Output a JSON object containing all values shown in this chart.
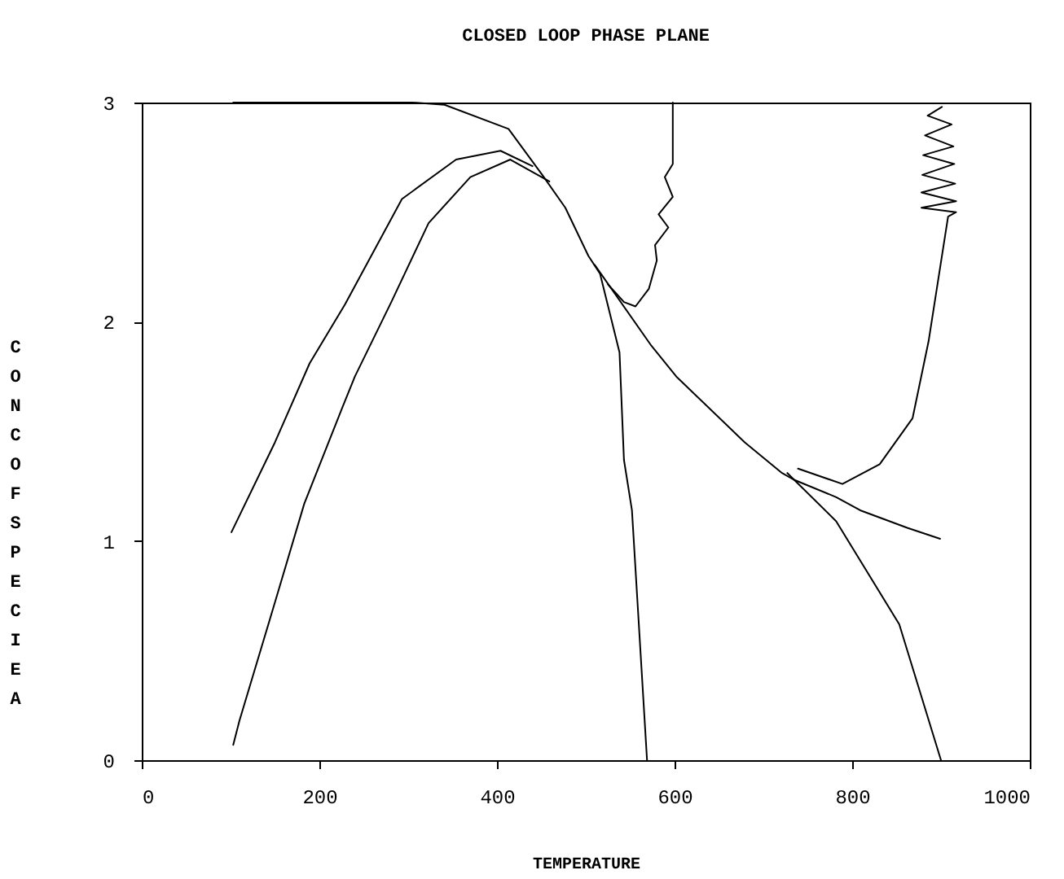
{
  "chart_data": {
    "type": "line",
    "title": "CLOSED LOOP PHASE PLANE",
    "xlabel": "TEMPERATURE",
    "ylabel": "CONC OF SPECIE A",
    "xlim": [
      0,
      1000
    ],
    "xticks": [
      0,
      200,
      400,
      600,
      800,
      1000
    ],
    "ylim": [
      0,
      3
    ],
    "yticks": [
      0,
      1,
      2,
      3
    ],
    "grid": false,
    "legend": false,
    "marker": "none",
    "line_style": "solid",
    "series": [
      {
        "color": "#000000",
        "x": [
          103,
          200,
          305,
          341,
          413,
          451,
          477,
          503,
          516,
          538,
          543,
          552,
          569
        ],
        "values": [
          3.0,
          3.0,
          3.0,
          2.99,
          2.88,
          2.67,
          2.52,
          2.3,
          2.22,
          1.86,
          1.37,
          1.14,
          0.0
        ]
      },
      {
        "color": "#000000",
        "x": [
          101,
          150,
          189,
          229,
          293,
          354,
          404,
          440
        ],
        "values": [
          1.04,
          1.45,
          1.81,
          2.08,
          2.56,
          2.74,
          2.78,
          2.71
        ]
      },
      {
        "color": "#000000",
        "x": [
          103,
          110,
          150,
          183,
          226,
          240,
          281,
          323,
          370,
          415,
          459
        ],
        "values": [
          0.07,
          0.18,
          0.72,
          1.17,
          1.61,
          1.75,
          2.09,
          2.45,
          2.66,
          2.74,
          2.64
        ]
      },
      {
        "color": "#000000",
        "x": [
          899,
          862,
          809,
          782,
          734,
          721,
          679,
          602,
          574,
          510
        ],
        "values": [
          1.01,
          1.06,
          1.14,
          1.2,
          1.28,
          1.31,
          1.45,
          1.75,
          1.89,
          2.26
        ]
      },
      {
        "color": "#000000",
        "x": [
          900,
          853,
          782,
          727
        ],
        "values": [
          0.0,
          0.62,
          1.09,
          1.31
        ]
      },
      {
        "color": "#000000",
        "x": [
          901,
          885,
          912,
          882,
          914,
          880,
          915,
          879,
          916,
          878,
          917,
          878,
          917,
          908,
          886,
          868,
          831,
          789,
          739
        ],
        "values": [
          2.98,
          2.94,
          2.9,
          2.85,
          2.8,
          2.76,
          2.72,
          2.67,
          2.63,
          2.59,
          2.55,
          2.52,
          2.5,
          2.48,
          1.91,
          1.56,
          1.35,
          1.26,
          1.33
        ]
      },
      {
        "color": "#000000",
        "x": [
          598,
          598,
          589,
          598,
          582,
          593,
          578,
          580,
          571,
          556,
          543,
          525
        ],
        "values": [
          3.0,
          2.72,
          2.66,
          2.57,
          2.49,
          2.43,
          2.35,
          2.28,
          2.15,
          2.07,
          2.09,
          2.17
        ]
      }
    ]
  }
}
